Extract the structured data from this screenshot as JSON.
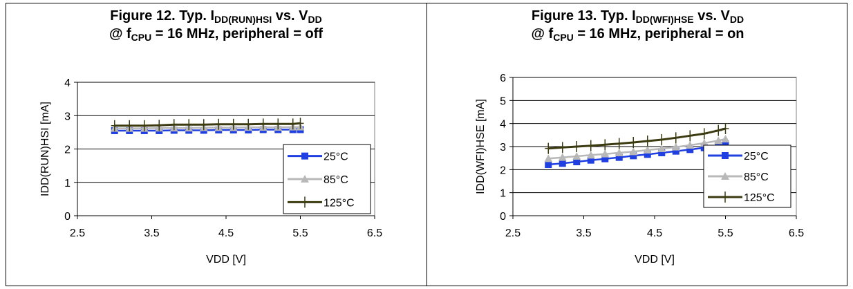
{
  "figures": [
    {
      "title_line1_prefix": "Figure 12. Typ. I",
      "title_line1_sub1": "DD(RUN)HSI",
      "title_line1_mid": " vs. V",
      "title_line1_sub2": "DD",
      "title_line2_prefix": "@ f",
      "title_line2_sub": "CPU",
      "title_line2_suffix": " = 16 MHz, peripheral = off"
    },
    {
      "title_line1_prefix": "Figure 13. Typ. I",
      "title_line1_sub1": "DD(WFI)HSE",
      "title_line1_mid": " vs. V",
      "title_line1_sub2": "DD",
      "title_line2_prefix": "@ f",
      "title_line2_sub": "CPU",
      "title_line2_suffix": " = 16 MHz, peripheral = on"
    }
  ],
  "colors": {
    "s25": "#1f3fe0",
    "s85": "#b8b8b8",
    "s125": "#3b3a10",
    "grid": "#000000"
  },
  "chart_data": [
    {
      "type": "line",
      "xlabel": "VDD [V]",
      "ylabel": "IDD(RUN)HSI [mA]",
      "xlim": [
        2.5,
        6.5
      ],
      "ylim": [
        0,
        4
      ],
      "xticks": [
        "2.5",
        "3.5",
        "4.5",
        "5.5",
        "6.5"
      ],
      "yticks": [
        "0",
        "1",
        "2",
        "3",
        "4"
      ],
      "grid": "horizontal",
      "legend_position": "bottom-right",
      "x": [
        3.0,
        3.2,
        3.4,
        3.6,
        3.8,
        4.0,
        4.2,
        4.4,
        4.6,
        4.8,
        5.0,
        5.2,
        5.4,
        5.5
      ],
      "series": [
        {
          "name": "25°C",
          "values": [
            2.55,
            2.55,
            2.55,
            2.55,
            2.56,
            2.56,
            2.56,
            2.57,
            2.57,
            2.57,
            2.58,
            2.58,
            2.58,
            2.58
          ]
        },
        {
          "name": "85°C",
          "values": [
            2.62,
            2.62,
            2.62,
            2.63,
            2.63,
            2.63,
            2.64,
            2.64,
            2.64,
            2.65,
            2.65,
            2.65,
            2.66,
            2.66
          ]
        },
        {
          "name": "125°C",
          "values": [
            2.7,
            2.7,
            2.7,
            2.71,
            2.73,
            2.73,
            2.73,
            2.74,
            2.74,
            2.74,
            2.75,
            2.75,
            2.75,
            2.77
          ]
        }
      ]
    },
    {
      "type": "line",
      "xlabel": "VDD [V]",
      "ylabel": "IDD(WFI)HSE [mA]",
      "xlim": [
        2.5,
        6.5
      ],
      "ylim": [
        0,
        6
      ],
      "xticks": [
        "2.5",
        "3.5",
        "4.5",
        "5.5",
        "6.5"
      ],
      "yticks": [
        "0",
        "1",
        "2",
        "3",
        "4",
        "5",
        "6"
      ],
      "grid": "horizontal",
      "legend_position": "bottom-right",
      "x": [
        3.0,
        3.2,
        3.4,
        3.6,
        3.8,
        4.0,
        4.2,
        4.4,
        4.6,
        4.8,
        5.0,
        5.2,
        5.4,
        5.5
      ],
      "series": [
        {
          "name": "25°C",
          "values": [
            2.22,
            2.27,
            2.34,
            2.41,
            2.47,
            2.53,
            2.6,
            2.66,
            2.73,
            2.8,
            2.87,
            2.95,
            3.05,
            3.12
          ]
        },
        {
          "name": "85°C",
          "values": [
            2.48,
            2.53,
            2.58,
            2.63,
            2.68,
            2.73,
            2.78,
            2.85,
            2.91,
            2.98,
            3.06,
            3.15,
            3.26,
            3.33
          ]
        },
        {
          "name": "125°C",
          "values": [
            2.92,
            2.96,
            3.0,
            3.04,
            3.08,
            3.13,
            3.18,
            3.24,
            3.3,
            3.38,
            3.47,
            3.56,
            3.7,
            3.78
          ]
        }
      ]
    }
  ]
}
